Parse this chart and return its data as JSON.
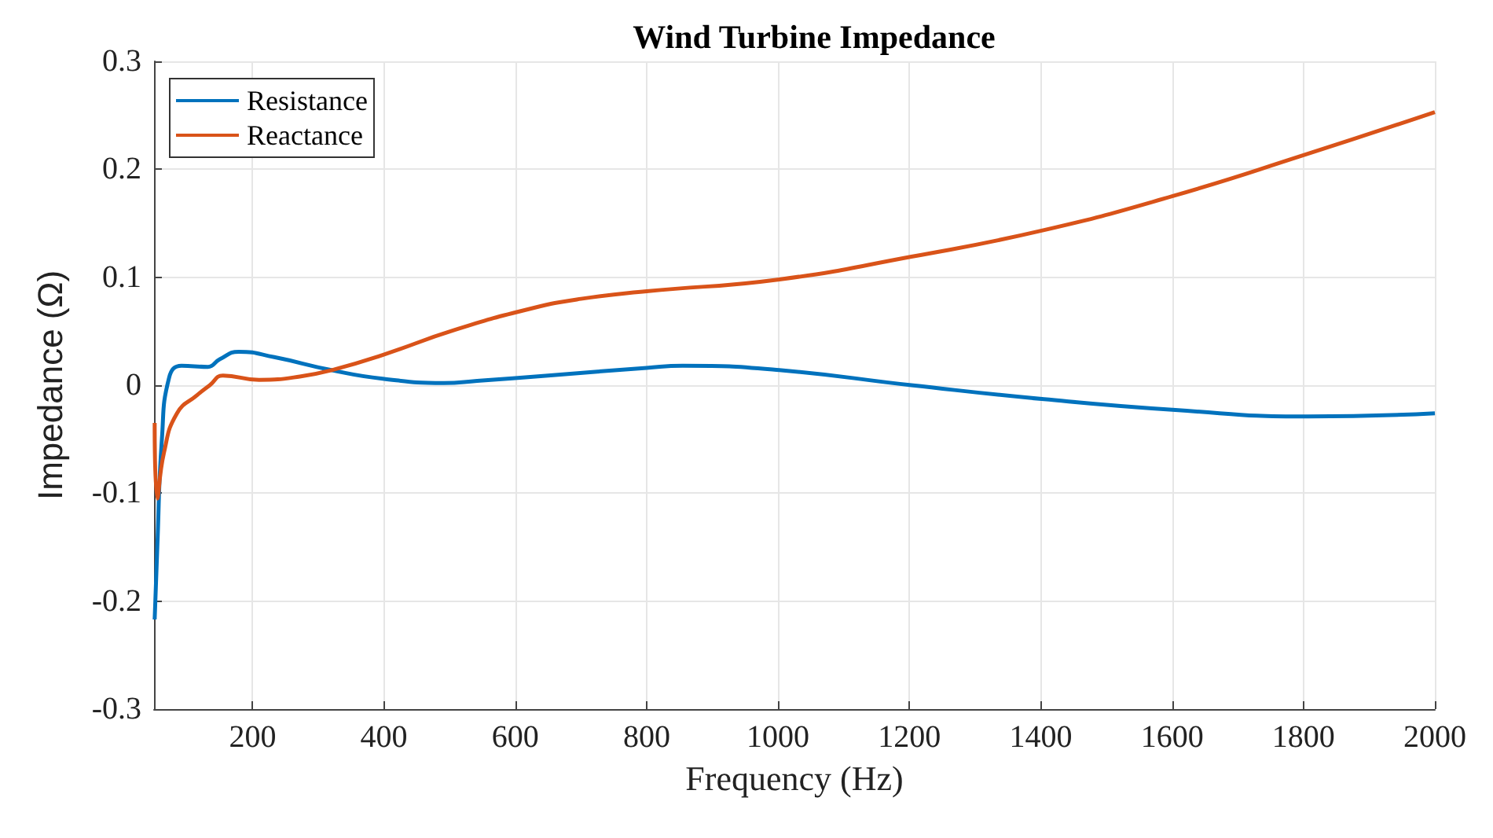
{
  "chart_data": {
    "type": "line",
    "title": "Wind Turbine Impedance",
    "xlabel": "Frequency (Hz)",
    "ylabel": "Impedance (Ω)",
    "xlim": [
      50,
      2000
    ],
    "xticks": [
      200,
      400,
      600,
      800,
      1000,
      1200,
      1400,
      1600,
      1800,
      2000
    ],
    "ylim": [
      -0.3,
      0.3
    ],
    "yticks": [
      -0.3,
      -0.2,
      -0.1,
      0,
      0.1,
      0.2,
      0.3
    ],
    "grid": true,
    "legend": "top left",
    "marker": "none",
    "line_style": "solid",
    "series": [
      {
        "name": "Resistance",
        "color": "#0072bd",
        "x": [
          51,
          55,
          62,
          73,
          92,
          132,
          150,
          179,
          233,
          320,
          398,
          491,
          542,
          650,
          800,
          855,
          1002,
          1203,
          1405,
          1605,
          1807,
          2000
        ],
        "values": [
          -0.217,
          -0.15,
          -0.05,
          0.007,
          0.018,
          0.017,
          0.024,
          0.031,
          0.026,
          0.014,
          0.006,
          0.002,
          0.004,
          0.009,
          0.016,
          0.018,
          0.014,
          0,
          -0.013,
          -0.023,
          -0.029,
          -0.026
        ]
      },
      {
        "name": "Reactance",
        "color": "#d95319",
        "x": [
          51,
          55,
          65,
          85,
          116,
          135,
          155,
          210,
          272,
          327,
          398,
          507,
          624,
          700,
          800,
          1002,
          1203,
          1400,
          1600,
          1800,
          2000
        ],
        "values": [
          -0.035,
          -0.105,
          -0.063,
          -0.026,
          -0.009,
          0,
          0.009,
          0.005,
          0.008,
          0.015,
          0.028,
          0.051,
          0.071,
          0.08,
          0.087,
          0.098,
          0.119,
          0.143,
          0.175,
          0.213,
          0.253
        ]
      }
    ]
  }
}
